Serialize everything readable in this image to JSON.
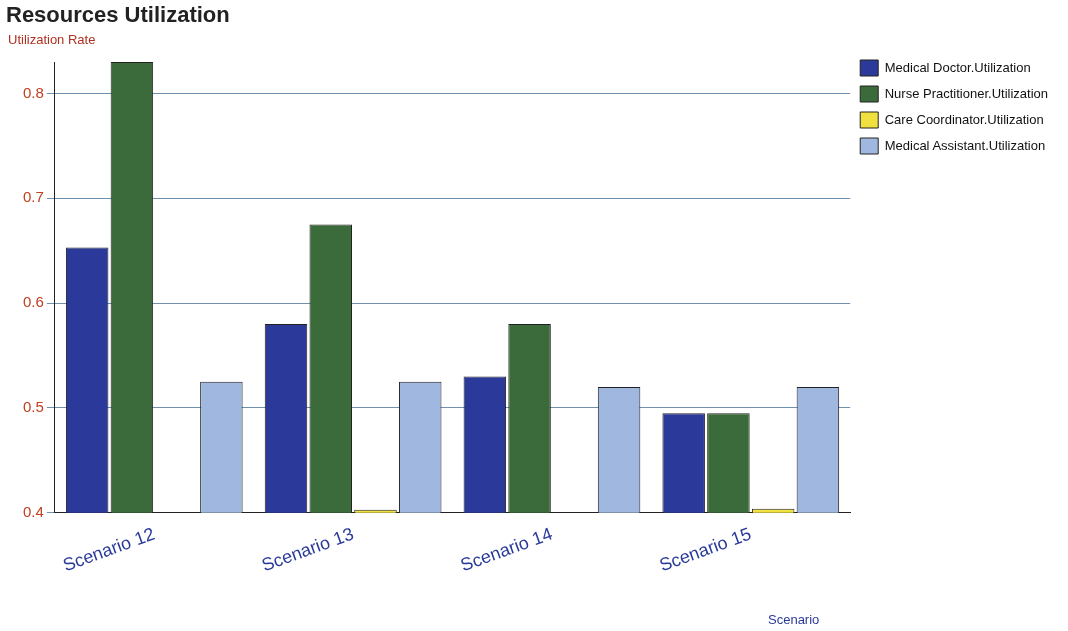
{
  "chart_data": {
    "type": "bar",
    "title": "Resources Utilization",
    "ylabel": "Utilization Rate",
    "xlabel": "Scenario",
    "categories": [
      "Scenario 12",
      "Scenario 13",
      "Scenario 14",
      "Scenario 15"
    ],
    "series": [
      {
        "name": "Medical Doctor.Utilization",
        "color": "#2b3a9a",
        "values": [
          0.653,
          0.58,
          0.53,
          0.495
        ]
      },
      {
        "name": "Nurse Practitioner.Utilization",
        "color": "#3b6b3b",
        "values": [
          0.83,
          0.675,
          0.58,
          0.495
        ]
      },
      {
        "name": "Care Coordinator.Utilization",
        "color": "#f0e040",
        "values": [
          null,
          0.403,
          null,
          0.404
        ]
      },
      {
        "name": "Medical Assistant.Utilization",
        "color": "#a0b8e0",
        "values": [
          0.525,
          0.525,
          0.52,
          0.52
        ]
      }
    ],
    "ylim": [
      0.4,
      0.83
    ],
    "yticks": [
      0.4,
      0.5,
      0.6,
      0.7,
      0.8
    ],
    "grid": "y",
    "legend": "top right"
  }
}
